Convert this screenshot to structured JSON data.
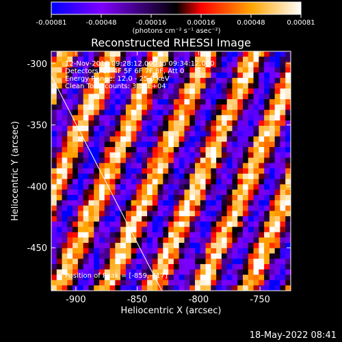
{
  "chart_data": {
    "type": "heatmap",
    "title": "Reconstructed RHESSI Image",
    "xlabel": "Heliocentric X (arcsec)",
    "ylabel": "Heliocentric Y (arcsec)",
    "xlim": [
      -920,
      -725
    ],
    "ylim": [
      -485,
      -290
    ],
    "x_ticks": [
      "-900",
      "-850",
      "-800",
      "-750"
    ],
    "x_tick_values": [
      -900,
      -850,
      -800,
      -750
    ],
    "y_ticks": [
      "-300",
      "-350",
      "-400",
      "-450"
    ],
    "y_tick_values": [
      -300,
      -350,
      -400,
      -450
    ],
    "colorbar": {
      "range": [
        -0.00081,
        0.00081
      ],
      "ticks": [
        "-0.00081",
        "-0.00048",
        "-0.00016",
        "0.00016",
        "0.00048",
        "0.00081"
      ],
      "unit_label": "(photons cm⁻² s⁻¹ asec⁻²)",
      "colors": [
        "#0000ff",
        "#7f00ff",
        "#000000",
        "#ff0000",
        "#ffa500",
        "#ffffff"
      ]
    },
    "annotations": [
      "12-Nov-2013 09:28:12.000 to 09:34:12.000",
      "Detectors: 3F 4F 5F 6F 7F 8F, Att 0",
      "Energy Range: 12.0 - 25.0 keV",
      "Clean     Total counts: 3.54E+04"
    ],
    "peak_label": "Position of Peak = [-859,-417]",
    "peak": [
      -859,
      -417
    ],
    "limb": [
      [
        -920,
        -310
      ],
      [
        -830,
        -485
      ]
    ]
  },
  "timestamp": "18-May-2022 08:41"
}
